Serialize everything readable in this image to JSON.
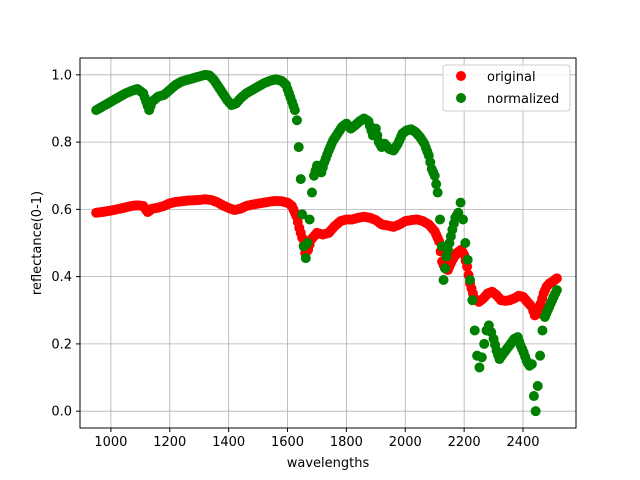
{
  "chart_data": {
    "type": "scatter",
    "xlabel": "wavelengths",
    "ylabel": "reflectance(0-1)",
    "xlim": [
      895,
      2580
    ],
    "ylim": [
      -0.05,
      1.05
    ],
    "xticks": [
      1000,
      1200,
      1400,
      1600,
      1800,
      2000,
      2200,
      2400
    ],
    "xtick_labels": [
      "1000",
      "1200",
      "1400",
      "1600",
      "1800",
      "2000",
      "2200",
      "2400"
    ],
    "yticks": [
      0.0,
      0.2,
      0.4,
      0.6,
      0.8,
      1.0
    ],
    "ytick_labels": [
      "0.0",
      "0.2",
      "0.4",
      "0.6",
      "0.8",
      "1.0"
    ],
    "grid": true,
    "legend_position": "top-right",
    "series": [
      {
        "name": "original",
        "color": "#ff0000",
        "points": [
          [
            950,
            0.59
          ],
          [
            970,
            0.592
          ],
          [
            990,
            0.595
          ],
          [
            1010,
            0.598
          ],
          [
            1030,
            0.602
          ],
          [
            1050,
            0.606
          ],
          [
            1070,
            0.61
          ],
          [
            1090,
            0.612
          ],
          [
            1110,
            0.61
          ],
          [
            1125,
            0.592
          ],
          [
            1140,
            0.602
          ],
          [
            1160,
            0.605
          ],
          [
            1180,
            0.61
          ],
          [
            1200,
            0.618
          ],
          [
            1220,
            0.622
          ],
          [
            1240,
            0.624
          ],
          [
            1260,
            0.626
          ],
          [
            1280,
            0.627
          ],
          [
            1300,
            0.628
          ],
          [
            1320,
            0.63
          ],
          [
            1340,
            0.628
          ],
          [
            1360,
            0.622
          ],
          [
            1380,
            0.612
          ],
          [
            1400,
            0.604
          ],
          [
            1420,
            0.598
          ],
          [
            1440,
            0.602
          ],
          [
            1460,
            0.61
          ],
          [
            1480,
            0.614
          ],
          [
            1500,
            0.617
          ],
          [
            1520,
            0.62
          ],
          [
            1540,
            0.623
          ],
          [
            1560,
            0.625
          ],
          [
            1580,
            0.624
          ],
          [
            1600,
            0.62
          ],
          [
            1615,
            0.61
          ],
          [
            1630,
            0.58
          ],
          [
            1640,
            0.545
          ],
          [
            1650,
            0.515
          ],
          [
            1660,
            0.47
          ],
          [
            1670,
            0.48
          ],
          [
            1680,
            0.51
          ],
          [
            1690,
            0.52
          ],
          [
            1700,
            0.53
          ],
          [
            1720,
            0.525
          ],
          [
            1740,
            0.53
          ],
          [
            1760,
            0.55
          ],
          [
            1780,
            0.565
          ],
          [
            1800,
            0.57
          ],
          [
            1820,
            0.57
          ],
          [
            1840,
            0.575
          ],
          [
            1860,
            0.578
          ],
          [
            1880,
            0.575
          ],
          [
            1900,
            0.568
          ],
          [
            1920,
            0.555
          ],
          [
            1940,
            0.552
          ],
          [
            1960,
            0.548
          ],
          [
            1980,
            0.555
          ],
          [
            2000,
            0.565
          ],
          [
            2020,
            0.568
          ],
          [
            2040,
            0.57
          ],
          [
            2060,
            0.565
          ],
          [
            2080,
            0.555
          ],
          [
            2100,
            0.535
          ],
          [
            2115,
            0.505
          ],
          [
            2125,
            0.445
          ],
          [
            2135,
            0.425
          ],
          [
            2145,
            0.42
          ],
          [
            2160,
            0.45
          ],
          [
            2175,
            0.47
          ],
          [
            2190,
            0.48
          ],
          [
            2200,
            0.465
          ],
          [
            2210,
            0.43
          ],
          [
            2220,
            0.38
          ],
          [
            2235,
            0.335
          ],
          [
            2250,
            0.325
          ],
          [
            2265,
            0.335
          ],
          [
            2280,
            0.35
          ],
          [
            2295,
            0.355
          ],
          [
            2310,
            0.345
          ],
          [
            2325,
            0.33
          ],
          [
            2340,
            0.328
          ],
          [
            2355,
            0.33
          ],
          [
            2370,
            0.335
          ],
          [
            2385,
            0.343
          ],
          [
            2400,
            0.34
          ],
          [
            2415,
            0.325
          ],
          [
            2430,
            0.31
          ],
          [
            2440,
            0.285
          ],
          [
            2450,
            0.29
          ],
          [
            2460,
            0.32
          ],
          [
            2470,
            0.35
          ],
          [
            2480,
            0.37
          ],
          [
            2490,
            0.38
          ],
          [
            2500,
            0.385
          ],
          [
            2515,
            0.395
          ]
        ]
      },
      {
        "name": "normalized",
        "color": "#008000",
        "points": [
          [
            950,
            0.895
          ],
          [
            970,
            0.905
          ],
          [
            990,
            0.915
          ],
          [
            1010,
            0.925
          ],
          [
            1030,
            0.935
          ],
          [
            1050,
            0.945
          ],
          [
            1070,
            0.952
          ],
          [
            1090,
            0.958
          ],
          [
            1110,
            0.945
          ],
          [
            1120,
            0.92
          ],
          [
            1130,
            0.895
          ],
          [
            1140,
            0.92
          ],
          [
            1160,
            0.935
          ],
          [
            1180,
            0.94
          ],
          [
            1200,
            0.955
          ],
          [
            1220,
            0.97
          ],
          [
            1240,
            0.98
          ],
          [
            1260,
            0.985
          ],
          [
            1280,
            0.99
          ],
          [
            1300,
            0.995
          ],
          [
            1320,
            1.0
          ],
          [
            1335,
            0.998
          ],
          [
            1350,
            0.985
          ],
          [
            1365,
            0.965
          ],
          [
            1380,
            0.945
          ],
          [
            1395,
            0.925
          ],
          [
            1410,
            0.91
          ],
          [
            1425,
            0.915
          ],
          [
            1440,
            0.93
          ],
          [
            1460,
            0.945
          ],
          [
            1480,
            0.955
          ],
          [
            1500,
            0.965
          ],
          [
            1520,
            0.975
          ],
          [
            1540,
            0.982
          ],
          [
            1560,
            0.987
          ],
          [
            1580,
            0.982
          ],
          [
            1595,
            0.97
          ],
          [
            1605,
            0.945
          ],
          [
            1615,
            0.92
          ],
          [
            1625,
            0.895
          ],
          [
            1632,
            0.865
          ],
          [
            1638,
            0.785
          ],
          [
            1645,
            0.69
          ],
          [
            1650,
            0.585
          ],
          [
            1655,
            0.49
          ],
          [
            1662,
            0.455
          ],
          [
            1668,
            0.5
          ],
          [
            1675,
            0.57
          ],
          [
            1683,
            0.65
          ],
          [
            1690,
            0.7
          ],
          [
            1700,
            0.73
          ],
          [
            1715,
            0.71
          ],
          [
            1725,
            0.74
          ],
          [
            1740,
            0.775
          ],
          [
            1755,
            0.805
          ],
          [
            1770,
            0.825
          ],
          [
            1785,
            0.845
          ],
          [
            1800,
            0.855
          ],
          [
            1815,
            0.84
          ],
          [
            1830,
            0.85
          ],
          [
            1845,
            0.862
          ],
          [
            1860,
            0.87
          ],
          [
            1875,
            0.862
          ],
          [
            1890,
            0.82
          ],
          [
            1900,
            0.84
          ],
          [
            1910,
            0.8
          ],
          [
            1920,
            0.785
          ],
          [
            1930,
            0.795
          ],
          [
            1945,
            0.78
          ],
          [
            1960,
            0.775
          ],
          [
            1975,
            0.795
          ],
          [
            1990,
            0.825
          ],
          [
            2005,
            0.835
          ],
          [
            2020,
            0.838
          ],
          [
            2035,
            0.83
          ],
          [
            2050,
            0.815
          ],
          [
            2065,
            0.795
          ],
          [
            2080,
            0.76
          ],
          [
            2090,
            0.72
          ],
          [
            2100,
            0.7
          ],
          [
            2110,
            0.65
          ],
          [
            2118,
            0.57
          ],
          [
            2125,
            0.49
          ],
          [
            2130,
            0.39
          ],
          [
            2140,
            0.46
          ],
          [
            2150,
            0.5
          ],
          [
            2160,
            0.54
          ],
          [
            2170,
            0.575
          ],
          [
            2180,
            0.59
          ],
          [
            2188,
            0.62
          ],
          [
            2196,
            0.57
          ],
          [
            2204,
            0.5
          ],
          [
            2212,
            0.45
          ],
          [
            2220,
            0.39
          ],
          [
            2228,
            0.33
          ],
          [
            2236,
            0.24
          ],
          [
            2244,
            0.165
          ],
          [
            2252,
            0.13
          ],
          [
            2260,
            0.16
          ],
          [
            2268,
            0.2
          ],
          [
            2276,
            0.24
          ],
          [
            2284,
            0.255
          ],
          [
            2292,
            0.235
          ],
          [
            2300,
            0.215
          ],
          [
            2310,
            0.18
          ],
          [
            2320,
            0.155
          ],
          [
            2332,
            0.17
          ],
          [
            2345,
            0.185
          ],
          [
            2358,
            0.2
          ],
          [
            2370,
            0.215
          ],
          [
            2382,
            0.22
          ],
          [
            2392,
            0.195
          ],
          [
            2402,
            0.175
          ],
          [
            2412,
            0.15
          ],
          [
            2422,
            0.135
          ],
          [
            2430,
            0.14
          ],
          [
            2437,
            0.045
          ],
          [
            2443,
            0.0
          ],
          [
            2450,
            0.075
          ],
          [
            2458,
            0.165
          ],
          [
            2466,
            0.24
          ],
          [
            2474,
            0.28
          ],
          [
            2484,
            0.3
          ],
          [
            2494,
            0.32
          ],
          [
            2504,
            0.34
          ],
          [
            2515,
            0.36
          ]
        ]
      }
    ]
  }
}
